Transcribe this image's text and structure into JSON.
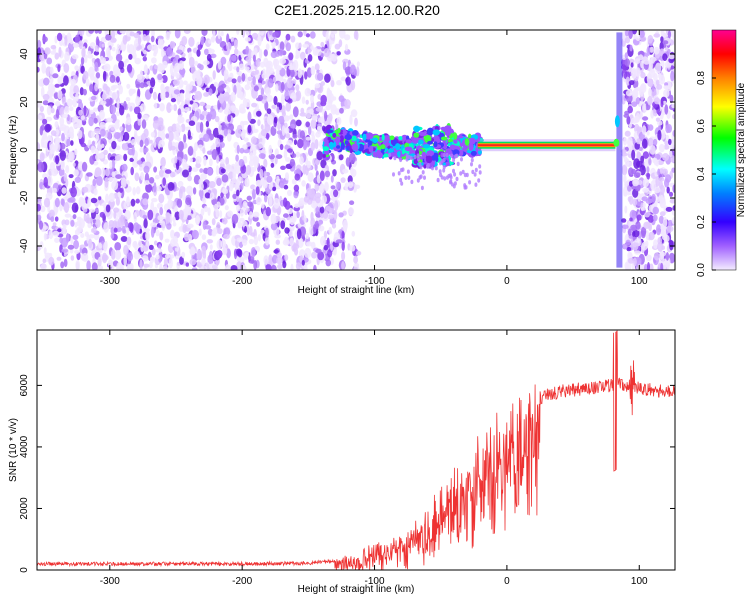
{
  "title": "C2E1.2025.215.12.00.R20",
  "chart_data": [
    {
      "type": "heatmap",
      "xlabel": "Height of straight line (km)",
      "ylabel": "Frequency (Hz)",
      "xlim": [
        -355,
        127
      ],
      "ylim": [
        -50,
        50
      ],
      "xticks": [
        -300,
        -200,
        -100,
        0,
        100
      ],
      "yticks": [
        -40,
        -20,
        0,
        20,
        40
      ],
      "colorbar": {
        "label": "Normalized spectral amplitude",
        "range": [
          0,
          1
        ],
        "ticks": [
          0.0,
          0.2,
          0.4,
          0.6,
          0.8
        ],
        "colors": [
          "#ffffff",
          "#7a1fe8",
          "#0000ff",
          "#00ffff",
          "#00ff00",
          "#ffff00",
          "#ff8000",
          "#ff0000",
          "#ff00ff"
        ]
      },
      "features": {
        "noise_region_km": [
          -355,
          -130
        ],
        "noise_region_right_km": [
          88,
          127
        ],
        "signal_track": [
          {
            "x": -135,
            "y": 5
          },
          {
            "x": -120,
            "y": 4
          },
          {
            "x": -100,
            "y": 2
          },
          {
            "x": -80,
            "y": 1
          },
          {
            "x": -60,
            "y": 1
          },
          {
            "x": -40,
            "y": 2
          },
          {
            "x": -20,
            "y": 2
          },
          {
            "x": 0,
            "y": 2
          },
          {
            "x": 40,
            "y": 2
          },
          {
            "x": 80,
            "y": 2
          }
        ],
        "vertical_streak_x_km": 85
      }
    },
    {
      "type": "line",
      "xlabel": "Height of straight line (km)",
      "ylabel": "SNR (10 * v/v)",
      "xlim": [
        -355,
        127
      ],
      "ylim": [
        0,
        7800
      ],
      "xticks": [
        -300,
        -200,
        -100,
        0,
        100
      ],
      "yticks": [
        0,
        2000,
        4000,
        6000
      ],
      "color": "#ee3333",
      "series": [
        {
          "x": [
            -355,
            -300,
            -250,
            -200,
            -150,
            -130,
            -110,
            -100,
            -90,
            -80,
            -70,
            -60,
            -50,
            -40,
            -30,
            -20,
            -10,
            0,
            10,
            20,
            30,
            40,
            60,
            80,
            85,
            90,
            100,
            110,
            127
          ],
          "values": [
            200,
            200,
            200,
            200,
            220,
            300,
            500,
            700,
            850,
            1000,
            1300,
            1700,
            2300,
            2800,
            3300,
            3800,
            4200,
            4600,
            5200,
            5500,
            5700,
            5800,
            5900,
            6000,
            6100,
            6000,
            5900,
            5850,
            5800
          ]
        }
      ]
    }
  ]
}
